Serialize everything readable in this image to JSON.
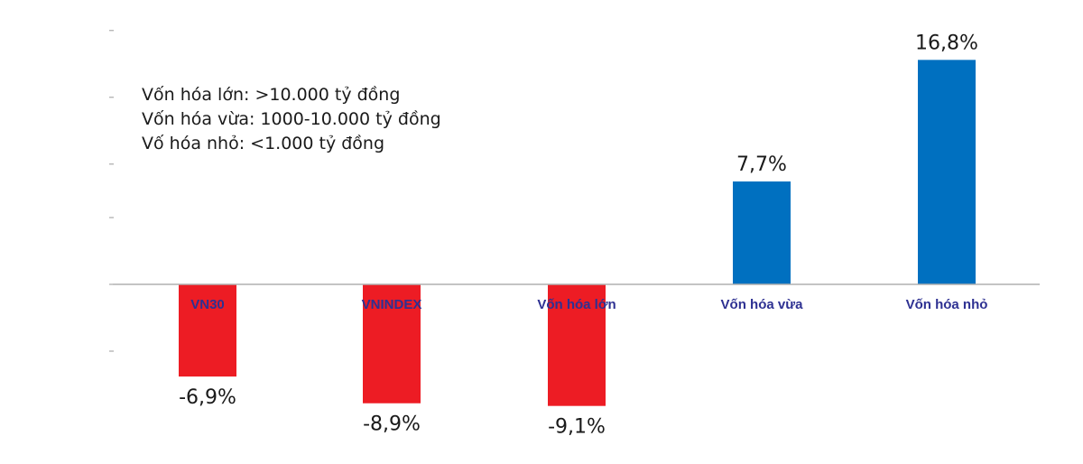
{
  "chart_data": {
    "type": "bar",
    "categories": [
      "VN30",
      "VNINDEX",
      "Vốn hóa lớn",
      "Vốn hóa vừa",
      "Vốn hóa nhỏ"
    ],
    "values": [
      -6.9,
      -8.9,
      -9.1,
      7.7,
      16.8
    ],
    "value_labels": [
      "-6,9%",
      "-8,9%",
      "-9,1%",
      "7,7%",
      "16,8%"
    ],
    "ylim": [
      -10,
      19
    ],
    "grid": false,
    "colors": {
      "positive": "#0070c0",
      "negative": "#ed1c24",
      "category_label": "#2e3192"
    },
    "notes": [
      "Vốn hóa lớn: >10.000 tỷ đồng",
      "Vốn hóa vừa: 1000-10.000 tỷ đồng",
      "Vố hóa nhỏ: <1.000 tỷ đồng"
    ]
  }
}
